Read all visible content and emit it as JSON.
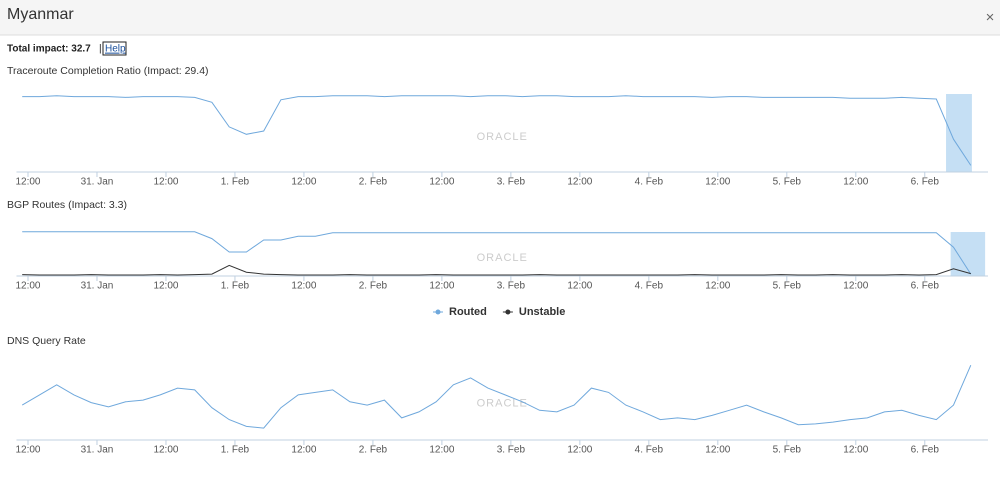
{
  "header": {
    "title": "Myanmar",
    "close": "×"
  },
  "summary": {
    "label": "Total impact: 32.7",
    "separator": "|",
    "help": "Help"
  },
  "chart_data": [
    {
      "type": "line",
      "title": "Traceroute Completion Ratio (Impact: 29.4)",
      "watermark": "ORACLE",
      "x": [
        -1,
        2,
        5,
        8,
        11,
        14,
        17,
        20,
        23,
        26,
        29,
        32,
        35,
        38,
        41,
        44,
        47,
        50,
        53,
        56,
        59,
        62,
        65,
        68,
        71,
        74,
        77,
        80,
        83,
        86,
        89,
        92,
        95,
        98,
        101,
        104,
        107,
        110,
        113,
        116,
        119,
        122,
        125,
        128,
        131,
        134,
        137,
        140,
        143,
        146,
        149,
        152,
        155,
        158,
        161,
        164
      ],
      "xlim": [
        -2,
        167
      ],
      "xticks": [
        {
          "value": 0,
          "label": "12:00"
        },
        {
          "value": 12,
          "label": "31. Jan"
        },
        {
          "value": 24,
          "label": "12:00"
        },
        {
          "value": 36,
          "label": "1. Feb"
        },
        {
          "value": 48,
          "label": "12:00"
        },
        {
          "value": 60,
          "label": "2. Feb"
        },
        {
          "value": 72,
          "label": "12:00"
        },
        {
          "value": 84,
          "label": "3. Feb"
        },
        {
          "value": 96,
          "label": "12:00"
        },
        {
          "value": 108,
          "label": "4. Feb"
        },
        {
          "value": 120,
          "label": "12:00"
        },
        {
          "value": 132,
          "label": "5. Feb"
        },
        {
          "value": 144,
          "label": "12:00"
        },
        {
          "value": 156,
          "label": "6. Feb"
        }
      ],
      "ylim": [
        0,
        100
      ],
      "band": [
        159.7,
        164.2
      ],
      "series": [
        {
          "color": "#6fa8dc",
          "values": [
            92,
            92,
            93,
            92,
            92,
            92,
            91,
            92,
            92,
            92,
            91,
            85,
            55,
            46,
            50,
            88,
            92,
            92,
            93,
            93,
            93,
            92,
            93,
            93,
            93,
            93,
            92,
            93,
            93,
            92,
            93,
            93,
            92,
            92,
            92,
            93,
            92,
            92,
            92,
            92,
            91,
            92,
            92,
            91,
            91,
            91,
            91,
            91,
            90,
            90,
            90,
            91,
            90,
            89,
            40,
            8
          ]
        }
      ]
    },
    {
      "type": "line",
      "title": "BGP Routes (Impact: 3.3)",
      "watermark": "ORACLE",
      "x": [
        -1,
        2,
        5,
        8,
        11,
        14,
        17,
        20,
        23,
        26,
        29,
        32,
        35,
        38,
        41,
        44,
        47,
        50,
        53,
        56,
        59,
        62,
        65,
        68,
        71,
        74,
        77,
        80,
        83,
        86,
        89,
        92,
        95,
        98,
        101,
        104,
        107,
        110,
        113,
        116,
        119,
        122,
        125,
        128,
        131,
        134,
        137,
        140,
        143,
        146,
        149,
        152,
        155,
        158,
        161,
        164
      ],
      "xlim": [
        -2,
        167
      ],
      "xticks": [
        {
          "value": 0,
          "label": "12:00"
        },
        {
          "value": 12,
          "label": "31. Jan"
        },
        {
          "value": 24,
          "label": "12:00"
        },
        {
          "value": 36,
          "label": "1. Feb"
        },
        {
          "value": 48,
          "label": "12:00"
        },
        {
          "value": 60,
          "label": "2. Feb"
        },
        {
          "value": 72,
          "label": "12:00"
        },
        {
          "value": 84,
          "label": "3. Feb"
        },
        {
          "value": 96,
          "label": "12:00"
        },
        {
          "value": 108,
          "label": "4. Feb"
        },
        {
          "value": 120,
          "label": "12:00"
        },
        {
          "value": 132,
          "label": "5. Feb"
        },
        {
          "value": 144,
          "label": "12:00"
        },
        {
          "value": 156,
          "label": "6. Feb"
        }
      ],
      "ylim": [
        0,
        100
      ],
      "band": [
        160.5,
        166.5
      ],
      "legend": "bottom",
      "series": [
        {
          "name": "Routed",
          "color": "#6fa8dc",
          "values": [
            92,
            92,
            92,
            92,
            92,
            92,
            92,
            92,
            92,
            92,
            92,
            78,
            50,
            50,
            75,
            75,
            83,
            83,
            90,
            90,
            90,
            90,
            90,
            90,
            90,
            90,
            90,
            90,
            90,
            90,
            90,
            90,
            90,
            90,
            90,
            90,
            90,
            90,
            90,
            90,
            90,
            90,
            90,
            90,
            90,
            90,
            90,
            90,
            90,
            90,
            90,
            90,
            90,
            90,
            60,
            4
          ]
        },
        {
          "name": "Unstable",
          "color": "#333333",
          "values": [
            3,
            2,
            2,
            2,
            3,
            2,
            2,
            2,
            3,
            2,
            3,
            4,
            22,
            8,
            4,
            3,
            2,
            2,
            2,
            3,
            2,
            2,
            2,
            2,
            3,
            2,
            2,
            2,
            2,
            2,
            3,
            2,
            2,
            2,
            2,
            2,
            2,
            2,
            2,
            3,
            2,
            2,
            2,
            2,
            3,
            2,
            2,
            3,
            2,
            2,
            2,
            3,
            2,
            3,
            15,
            5
          ]
        }
      ]
    },
    {
      "type": "line",
      "title": "DNS Query Rate",
      "watermark": "ORACLE",
      "x": [
        -1,
        2,
        5,
        8,
        11,
        14,
        17,
        20,
        23,
        26,
        29,
        32,
        35,
        38,
        41,
        44,
        47,
        50,
        53,
        56,
        59,
        62,
        65,
        68,
        71,
        74,
        77,
        80,
        83,
        86,
        89,
        92,
        95,
        98,
        101,
        104,
        107,
        110,
        113,
        116,
        119,
        122,
        125,
        128,
        131,
        134,
        137,
        140,
        143,
        146,
        149,
        152,
        155,
        158,
        161,
        164
      ],
      "xlim": [
        -2,
        167
      ],
      "xticks": [
        {
          "value": 0,
          "label": "12:00"
        },
        {
          "value": 12,
          "label": "31. Jan"
        },
        {
          "value": 24,
          "label": "12:00"
        },
        {
          "value": 36,
          "label": "1. Feb"
        },
        {
          "value": 48,
          "label": "12:00"
        },
        {
          "value": 60,
          "label": "2. Feb"
        },
        {
          "value": 72,
          "label": "12:00"
        },
        {
          "value": 84,
          "label": "3. Feb"
        },
        {
          "value": 96,
          "label": "12:00"
        },
        {
          "value": 108,
          "label": "4. Feb"
        },
        {
          "value": 120,
          "label": "12:00"
        },
        {
          "value": 132,
          "label": "5. Feb"
        },
        {
          "value": 144,
          "label": "12:00"
        },
        {
          "value": 156,
          "label": "6. Feb"
        }
      ],
      "ylim": [
        0,
        100
      ],
      "series": [
        {
          "color": "#6fa8dc",
          "values": [
            41,
            53,
            65,
            53,
            44,
            39,
            45,
            47,
            53,
            61,
            59,
            38,
            24,
            16,
            14,
            38,
            53,
            56,
            59,
            45,
            41,
            47,
            26,
            33,
            45,
            65,
            73,
            61,
            53,
            45,
            35,
            33,
            41,
            61,
            56,
            41,
            33,
            24,
            26,
            24,
            29,
            35,
            41,
            33,
            26,
            18,
            19,
            21,
            24,
            26,
            33,
            35,
            29,
            24,
            41,
            88
          ]
        }
      ]
    }
  ]
}
